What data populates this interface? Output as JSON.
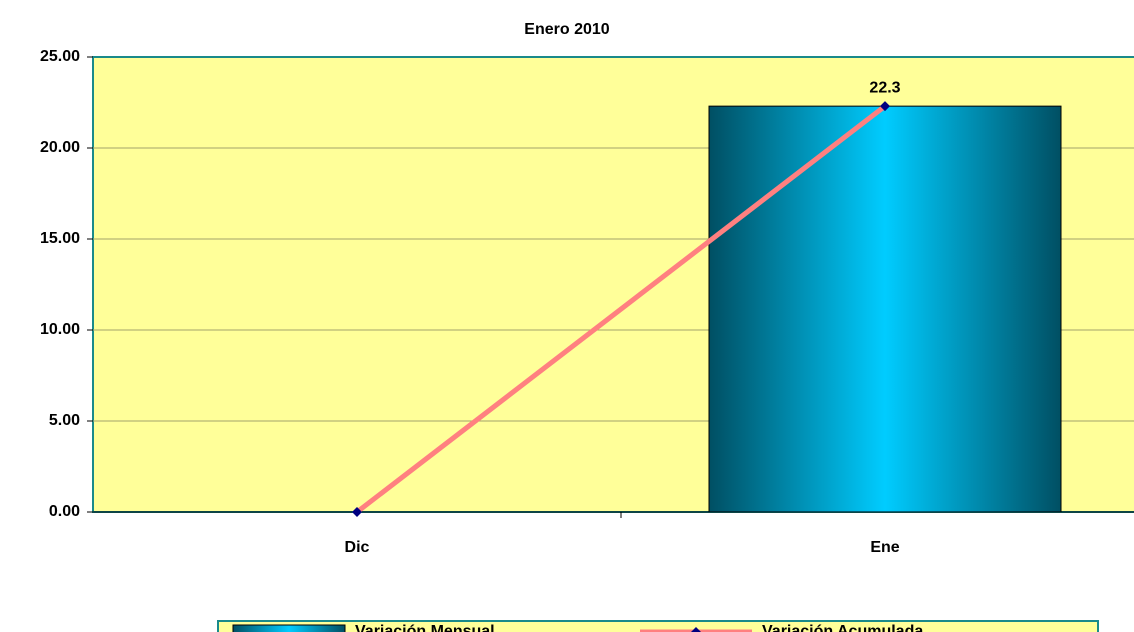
{
  "chart_data": {
    "type": "bar",
    "title": "Enero 2010",
    "categories": [
      "Dic",
      "Ene"
    ],
    "series": [
      {
        "name": "Variación Mensual",
        "type": "bar",
        "color": "#00ccff",
        "values": [
          null,
          22.3
        ]
      },
      {
        "name": "Variación Acumulada",
        "type": "line",
        "color": "#ff8080",
        "values": [
          0,
          22.3
        ]
      }
    ],
    "ylim": [
      0,
      25
    ],
    "yticks": [
      {
        "value": 0,
        "label": "0.00"
      },
      {
        "value": 5,
        "label": "5.00"
      },
      {
        "value": 10,
        "label": "10.00"
      },
      {
        "value": 15,
        "label": "15.00"
      },
      {
        "value": 20,
        "label": "20.00"
      },
      {
        "value": 25,
        "label": "25.00"
      }
    ],
    "grid": true,
    "legend": "bottom"
  }
}
